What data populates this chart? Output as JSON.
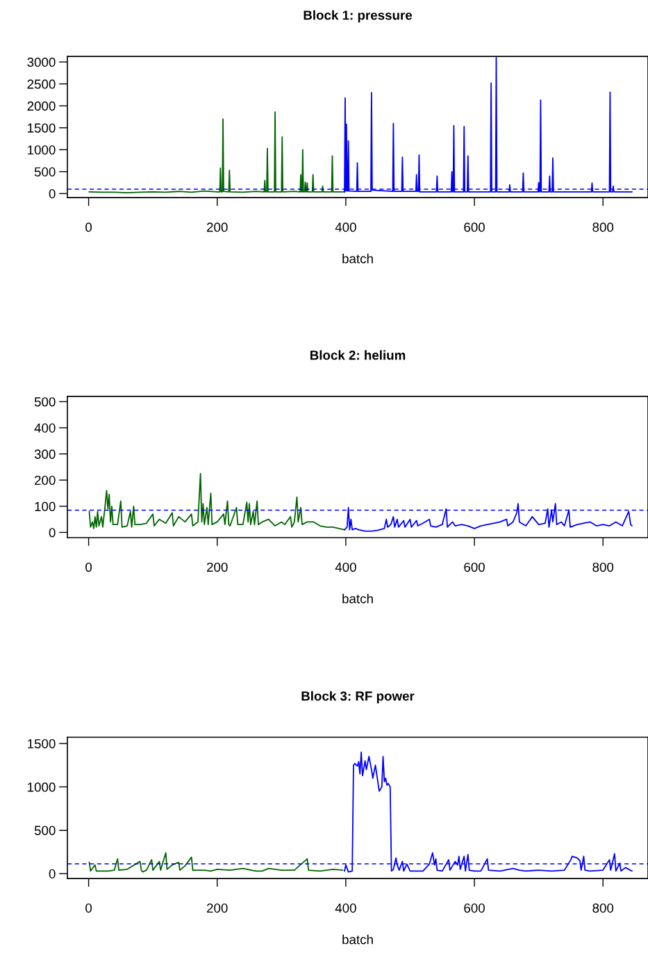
{
  "chart_data": [
    {
      "type": "line",
      "title": "Block 1: pressure",
      "xlabel": "batch",
      "xlim": [
        -33,
        870
      ],
      "ylim": [
        -92,
        3127
      ],
      "xticks": [
        0,
        200,
        400,
        600,
        800
      ],
      "yticks": [
        0,
        500,
        1000,
        1500,
        2000,
        2500,
        3000
      ],
      "series": [
        {
          "color": "#006400",
          "x": [
            1,
            20,
            40,
            60,
            80,
            100,
            120,
            140,
            160,
            180,
            200,
            204,
            205,
            206,
            208,
            209,
            210,
            218,
            219,
            220,
            240,
            260,
            273,
            274,
            275,
            277,
            278,
            279,
            289,
            290,
            291,
            300,
            301,
            302,
            320,
            329,
            330,
            331,
            332,
            333,
            334,
            336,
            337,
            338,
            339,
            340,
            341,
            348,
            349,
            350,
            363,
            364,
            365,
            378,
            379,
            380,
            398
          ],
          "values": [
            40,
            30,
            30,
            20,
            30,
            40,
            30,
            50,
            30,
            60,
            40,
            40,
            580,
            40,
            40,
            1700,
            50,
            40,
            530,
            40,
            30,
            50,
            40,
            300,
            40,
            40,
            1030,
            40,
            40,
            1860,
            40,
            40,
            1290,
            40,
            50,
            40,
            430,
            40,
            40,
            1000,
            40,
            40,
            260,
            40,
            40,
            240,
            40,
            40,
            430,
            40,
            40,
            170,
            40,
            40,
            860,
            40,
            40
          ]
        },
        {
          "color": "#0000ff",
          "x": [
            398,
            399,
            400,
            401,
            402,
            403,
            404,
            405,
            417,
            418,
            419,
            439,
            440,
            441,
            473,
            474,
            475,
            487,
            488,
            489,
            509,
            510,
            511,
            513,
            514,
            515,
            541,
            542,
            543,
            564,
            565,
            566,
            567,
            568,
            569,
            583,
            584,
            585,
            589,
            590,
            591,
            625,
            626,
            627,
            633,
            634,
            635,
            654,
            655,
            656,
            675,
            676,
            677,
            699,
            700,
            701,
            702,
            703,
            704,
            716,
            717,
            718,
            721,
            722,
            723,
            782,
            783,
            784,
            810,
            811,
            812,
            815,
            816,
            817,
            845
          ],
          "values": [
            40,
            2180,
            60,
            1580,
            60,
            60,
            1200,
            60,
            50,
            700,
            50,
            50,
            2300,
            80,
            50,
            1600,
            50,
            50,
            830,
            50,
            50,
            430,
            50,
            50,
            880,
            40,
            40,
            400,
            40,
            40,
            500,
            40,
            40,
            1550,
            40,
            40,
            1530,
            40,
            40,
            860,
            40,
            40,
            2520,
            40,
            40,
            3100,
            40,
            40,
            200,
            40,
            40,
            470,
            40,
            40,
            250,
            40,
            40,
            2130,
            40,
            40,
            400,
            40,
            40,
            810,
            40,
            40,
            240,
            40,
            40,
            2310,
            40,
            40,
            170,
            40,
            40
          ]
        }
      ],
      "ref_lines": [
        {
          "axis": "y",
          "value": 100,
          "color": "#0000ff",
          "line_style": "dashed"
        }
      ]
    },
    {
      "type": "line",
      "title": "Block 2: helium",
      "xlabel": "batch",
      "xlim": [
        -33,
        870
      ],
      "ylim": [
        -20,
        520
      ],
      "xticks": [
        0,
        200,
        400,
        600,
        800
      ],
      "yticks": [
        0,
        100,
        200,
        300,
        400,
        500
      ],
      "series": [
        {
          "color": "#006400",
          "x": [
            1,
            3,
            6,
            8,
            10,
            12,
            14,
            16,
            20,
            22,
            26,
            28,
            30,
            32,
            34,
            36,
            38,
            45,
            50,
            52,
            60,
            65,
            67,
            70,
            72,
            80,
            90,
            100,
            102,
            110,
            120,
            130,
            132,
            140,
            150,
            160,
            162,
            170,
            174,
            176,
            178,
            180,
            184,
            186,
            190,
            192,
            200,
            210,
            212,
            216,
            218,
            220,
            230,
            232,
            240,
            246,
            248,
            250,
            252,
            256,
            258,
            262,
            264,
            270,
            280,
            290,
            300,
            305,
            314,
            316,
            320,
            324,
            326,
            330,
            332,
            340,
            350,
            360,
            370,
            380,
            398
          ],
          "values": [
            80,
            20,
            40,
            15,
            60,
            20,
            80,
            25,
            60,
            20,
            110,
            160,
            90,
            145,
            40,
            100,
            30,
            30,
            120,
            20,
            25,
            80,
            20,
            100,
            30,
            30,
            35,
            70,
            25,
            50,
            35,
            75,
            25,
            60,
            40,
            70,
            25,
            40,
            225,
            40,
            110,
            30,
            95,
            30,
            150,
            30,
            40,
            70,
            30,
            120,
            30,
            25,
            95,
            30,
            30,
            115,
            40,
            110,
            30,
            80,
            30,
            120,
            30,
            40,
            50,
            25,
            40,
            30,
            60,
            20,
            40,
            135,
            40,
            95,
            30,
            40,
            40,
            25,
            20,
            20,
            10
          ]
        },
        {
          "color": "#0000ff",
          "x": [
            398,
            402,
            404,
            406,
            408,
            410,
            415,
            420,
            430,
            440,
            450,
            460,
            463,
            465,
            470,
            474,
            476,
            480,
            482,
            490,
            492,
            500,
            502,
            510,
            512,
            520,
            530,
            532,
            540,
            550,
            556,
            558,
            566,
            570,
            580,
            590,
            600,
            610,
            620,
            630,
            640,
            650,
            652,
            660,
            666,
            668,
            670,
            680,
            690,
            700,
            710,
            714,
            716,
            720,
            722,
            726,
            728,
            735,
            740,
            747,
            749,
            760,
            780,
            790,
            800,
            810,
            820,
            830,
            840,
            843,
            845
          ],
          "values": [
            10,
            20,
            95,
            10,
            50,
            10,
            15,
            10,
            5,
            5,
            8,
            15,
            50,
            20,
            30,
            60,
            20,
            50,
            20,
            45,
            20,
            50,
            20,
            45,
            25,
            35,
            50,
            25,
            20,
            30,
            90,
            20,
            40,
            25,
            30,
            25,
            15,
            25,
            30,
            35,
            40,
            50,
            25,
            40,
            75,
            110,
            40,
            25,
            60,
            30,
            35,
            90,
            20,
            85,
            40,
            110,
            30,
            40,
            25,
            85,
            20,
            30,
            40,
            25,
            30,
            25,
            40,
            25,
            80,
            30,
            25
          ]
        }
      ],
      "ref_lines": [
        {
          "axis": "y",
          "value": 85,
          "color": "#0000ff",
          "line_style": "dashed"
        }
      ]
    },
    {
      "type": "line",
      "title": "Block 3: RF power",
      "xlabel": "batch",
      "xlim": [
        -33,
        870
      ],
      "ylim": [
        -56,
        1572
      ],
      "xticks": [
        0,
        200,
        400,
        600,
        800
      ],
      "yticks": [
        0,
        500,
        1000,
        1500
      ],
      "series": [
        {
          "color": "#006400",
          "x": [
            1,
            3,
            10,
            12,
            20,
            30,
            40,
            45,
            47,
            60,
            80,
            82,
            84,
            90,
            98,
            100,
            110,
            112,
            120,
            122,
            130,
            140,
            142,
            150,
            160,
            162,
            180,
            190,
            200,
            220,
            240,
            260,
            270,
            280,
            300,
            320,
            340,
            342,
            360,
            380,
            395
          ],
          "values": [
            130,
            30,
            100,
            30,
            30,
            30,
            40,
            170,
            40,
            50,
            140,
            40,
            20,
            40,
            160,
            40,
            140,
            40,
            240,
            50,
            100,
            130,
            40,
            90,
            190,
            40,
            40,
            30,
            50,
            40,
            60,
            30,
            30,
            60,
            40,
            40,
            170,
            40,
            30,
            50,
            40
          ]
        },
        {
          "color": "#0000ff",
          "x": [
            398,
            400,
            404,
            410,
            412,
            414,
            418,
            420,
            422,
            424,
            426,
            430,
            432,
            436,
            440,
            442,
            446,
            450,
            452,
            456,
            458,
            460,
            462,
            464,
            466,
            469,
            471,
            474,
            478,
            480,
            483,
            488,
            490,
            495,
            500,
            510,
            520,
            530,
            535,
            538,
            540,
            542,
            550,
            560,
            562,
            570,
            574,
            576,
            578,
            584,
            586,
            590,
            592,
            600,
            610,
            620,
            622,
            640,
            660,
            670,
            680,
            700,
            720,
            740,
            750,
            752,
            760,
            764,
            766,
            770,
            772,
            780,
            800,
            810,
            812,
            818,
            820,
            826,
            828,
            835,
            845
          ],
          "values": [
            30,
            100,
            20,
            30,
            1250,
            1270,
            1240,
            1290,
            1150,
            1400,
            1130,
            1300,
            1200,
            1350,
            1200,
            1100,
            1250,
            1050,
            950,
            1000,
            1350,
            1060,
            1100,
            1020,
            1040,
            1000,
            30,
            50,
            180,
            100,
            40,
            140,
            30,
            110,
            30,
            30,
            30,
            110,
            240,
            100,
            170,
            40,
            30,
            160,
            40,
            140,
            100,
            200,
            50,
            200,
            30,
            220,
            40,
            30,
            30,
            170,
            40,
            30,
            60,
            40,
            30,
            40,
            30,
            40,
            160,
            200,
            180,
            150,
            40,
            200,
            40,
            30,
            40,
            160,
            40,
            230,
            30,
            120,
            30,
            70,
            30
          ]
        }
      ],
      "ref_lines": [
        {
          "axis": "y",
          "value": 112,
          "color": "#0000ff",
          "line_style": "dashed"
        }
      ]
    }
  ]
}
